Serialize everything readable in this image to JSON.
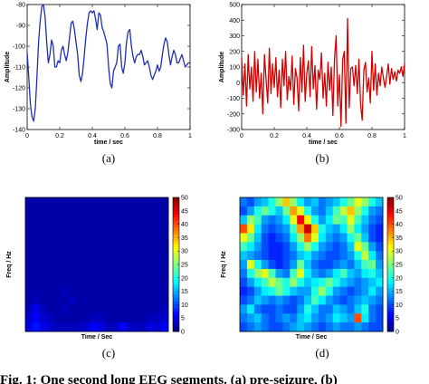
{
  "chart_data": [
    {
      "type": "line",
      "panel_label": "(a)",
      "xlabel": "time / sec",
      "ylabel": "Amplitude",
      "xlim": [
        0,
        1
      ],
      "ylim": [
        -140,
        -80
      ],
      "xticks": [
        "0",
        "0.2",
        "0.4",
        "0.6",
        "0.8",
        "1"
      ],
      "yticks": [
        "-80",
        "-90",
        "-100",
        "-110",
        "-120",
        "-130",
        "-140"
      ],
      "color": "#1f2fb0",
      "x": [
        0,
        0.01,
        0.02,
        0.03,
        0.04,
        0.05,
        0.06,
        0.07,
        0.08,
        0.09,
        0.1,
        0.11,
        0.12,
        0.13,
        0.14,
        0.15,
        0.16,
        0.17,
        0.18,
        0.19,
        0.2,
        0.21,
        0.22,
        0.23,
        0.24,
        0.25,
        0.26,
        0.27,
        0.28,
        0.29,
        0.3,
        0.31,
        0.32,
        0.33,
        0.34,
        0.35,
        0.36,
        0.37,
        0.38,
        0.39,
        0.4,
        0.41,
        0.42,
        0.43,
        0.44,
        0.45,
        0.46,
        0.47,
        0.48,
        0.49,
        0.5,
        0.51,
        0.52,
        0.53,
        0.54,
        0.55,
        0.56,
        0.57,
        0.58,
        0.59,
        0.6,
        0.61,
        0.62,
        0.63,
        0.64,
        0.65,
        0.66,
        0.67,
        0.68,
        0.69,
        0.7,
        0.71,
        0.72,
        0.73,
        0.74,
        0.75,
        0.76,
        0.77,
        0.78,
        0.79,
        0.8,
        0.81,
        0.82,
        0.83,
        0.84,
        0.85,
        0.86,
        0.87,
        0.88,
        0.89,
        0.9,
        0.91,
        0.92,
        0.93,
        0.94,
        0.95,
        0.96,
        0.97,
        0.98,
        0.99,
        1.0
      ],
      "y": [
        -103,
        -115,
        -128,
        -134,
        -136,
        -130,
        -115,
        -98,
        -88,
        -81,
        -80,
        -86,
        -98,
        -108,
        -104,
        -97,
        -100,
        -110,
        -110,
        -107,
        -108,
        -102,
        -100,
        -104,
        -107,
        -103,
        -96,
        -89,
        -88,
        -92,
        -98,
        -104,
        -114,
        -117,
        -113,
        -105,
        -96,
        -89,
        -84,
        -83,
        -84,
        -83,
        -87,
        -92,
        -84,
        -85,
        -91,
        -93,
        -96,
        -99,
        -110,
        -118,
        -120,
        -112,
        -110,
        -108,
        -100,
        -99,
        -110,
        -113,
        -108,
        -98,
        -93,
        -92,
        -100,
        -105,
        -108,
        -105,
        -104,
        -104,
        -102,
        -105,
        -109,
        -108,
        -107,
        -110,
        -114,
        -116,
        -114,
        -112,
        -109,
        -112,
        -110,
        -104,
        -99,
        -96,
        -98,
        -104,
        -109,
        -105,
        -102,
        -104,
        -108,
        -108,
        -106,
        -104,
        -107,
        -110,
        -109,
        -108,
        -108
      ]
    },
    {
      "type": "line",
      "panel_label": "(b)",
      "xlabel": "time / sec",
      "ylabel": "Amplitude",
      "xlim": [
        0,
        1
      ],
      "ylim": [
        -300,
        500
      ],
      "xticks": [
        "0",
        "0.2",
        "0.4",
        "0.6",
        "0.8",
        "1"
      ],
      "yticks": [
        "500",
        "400",
        "300",
        "200",
        "100",
        "0",
        "-100",
        "-200",
        "-300"
      ],
      "color": "#d40000",
      "x": [
        0,
        0.01,
        0.02,
        0.03,
        0.04,
        0.05,
        0.06,
        0.07,
        0.08,
        0.09,
        0.1,
        0.11,
        0.12,
        0.13,
        0.14,
        0.15,
        0.16,
        0.17,
        0.18,
        0.19,
        0.2,
        0.21,
        0.22,
        0.23,
        0.24,
        0.25,
        0.26,
        0.27,
        0.28,
        0.29,
        0.3,
        0.31,
        0.32,
        0.33,
        0.34,
        0.35,
        0.36,
        0.37,
        0.38,
        0.39,
        0.4,
        0.41,
        0.42,
        0.43,
        0.44,
        0.45,
        0.46,
        0.47,
        0.48,
        0.49,
        0.5,
        0.51,
        0.52,
        0.53,
        0.54,
        0.55,
        0.56,
        0.57,
        0.58,
        0.59,
        0.6,
        0.61,
        0.62,
        0.63,
        0.64,
        0.65,
        0.66,
        0.67,
        0.68,
        0.69,
        0.7,
        0.71,
        0.72,
        0.73,
        0.74,
        0.75,
        0.76,
        0.77,
        0.78,
        0.79,
        0.8,
        0.81,
        0.82,
        0.83,
        0.84,
        0.85,
        0.86,
        0.87,
        0.88,
        0.89,
        0.9,
        0.91,
        0.92,
        0.93,
        0.94,
        0.95,
        0.96,
        0.97,
        0.98,
        0.99,
        1.0
      ],
      "y": [
        160,
        -80,
        120,
        -150,
        180,
        -40,
        100,
        -120,
        200,
        -60,
        150,
        -100,
        60,
        -200,
        180,
        20,
        -130,
        220,
        -70,
        120,
        -30,
        160,
        -90,
        80,
        -160,
        150,
        -20,
        200,
        -110,
        40,
        -50,
        170,
        -140,
        90,
        30,
        -180,
        160,
        -60,
        240,
        -120,
        60,
        140,
        -90,
        230,
        -40,
        110,
        -170,
        80,
        20,
        190,
        -100,
        60,
        -150,
        130,
        -50,
        100,
        -210,
        150,
        300,
        -150,
        50,
        -280,
        150,
        200,
        -260,
        410,
        -160,
        90,
        100,
        -20,
        110,
        -70,
        150,
        -140,
        -240,
        80,
        130,
        -60,
        30,
        -130,
        200,
        -50,
        120,
        -80,
        60,
        -20,
        100,
        30,
        -30,
        40,
        120,
        -10,
        90,
        20,
        70,
        10,
        80,
        60,
        100,
        40,
        120
      ]
    },
    {
      "type": "heatmap",
      "panel_label": "(c)",
      "xlabel": "Time / Sec",
      "ylabel": "Freq / Hz",
      "colorbar_ticks": [
        "50",
        "45",
        "40",
        "35",
        "30",
        "25",
        "20",
        "15",
        "10",
        "5",
        "0"
      ],
      "clim": [
        0,
        50
      ],
      "grid": [
        [
          2,
          2,
          2,
          2,
          2,
          2,
          2,
          2,
          2,
          2,
          2,
          2,
          2,
          2,
          2,
          2,
          2,
          2,
          2,
          2
        ],
        [
          2,
          2,
          2,
          2,
          2,
          2,
          2,
          2,
          2,
          2,
          2,
          2,
          2,
          2,
          2,
          2,
          2,
          2,
          2,
          2
        ],
        [
          2,
          2,
          2,
          2,
          2,
          2,
          2,
          2,
          2,
          2,
          2,
          2,
          2,
          2,
          2,
          2,
          2,
          2,
          2,
          2
        ],
        [
          2,
          2,
          2,
          2,
          2,
          2,
          2,
          2,
          2,
          2,
          2,
          2,
          2,
          2,
          2,
          2,
          2,
          2,
          2,
          2
        ],
        [
          2,
          2,
          2,
          2,
          2,
          2,
          2,
          2,
          2,
          2,
          2,
          2,
          2,
          2,
          2,
          2,
          2,
          2,
          2,
          2
        ],
        [
          2,
          2,
          2,
          2,
          2,
          2,
          2,
          2,
          2,
          2,
          2,
          2,
          2,
          2,
          2,
          2,
          2,
          2,
          2,
          2
        ],
        [
          2,
          2,
          2,
          2,
          2,
          2,
          2,
          2,
          2,
          2,
          2,
          2,
          2,
          2,
          2,
          2,
          2,
          2,
          2,
          2
        ],
        [
          2,
          2,
          2,
          2,
          2,
          2,
          2,
          2,
          2,
          2,
          2,
          2,
          2,
          2,
          2,
          2,
          2,
          2,
          2,
          2
        ],
        [
          2,
          2,
          2,
          2,
          2,
          2,
          2,
          2,
          2,
          2,
          2,
          2,
          2,
          2,
          2,
          2,
          2,
          2,
          2,
          2
        ],
        [
          2,
          2,
          2,
          2,
          2,
          2,
          2,
          2,
          2,
          2,
          2,
          2,
          2,
          2,
          2,
          2,
          2,
          2,
          2,
          2
        ],
        [
          2,
          2,
          2,
          2,
          2,
          3,
          2,
          2,
          2,
          2,
          2,
          2,
          2,
          2,
          2,
          2,
          2,
          2,
          2,
          2
        ],
        [
          2,
          3,
          2,
          2,
          2,
          2,
          3,
          2,
          2,
          2,
          2,
          2,
          2,
          2,
          2,
          2,
          2,
          2,
          2,
          2
        ],
        [
          3,
          5,
          3,
          2,
          2,
          3,
          2,
          2,
          2,
          2,
          2,
          2,
          2,
          2,
          2,
          2,
          2,
          2,
          2,
          3
        ],
        [
          4,
          6,
          4,
          3,
          2,
          2,
          2,
          2,
          2,
          3,
          3,
          2,
          2,
          2,
          2,
          2,
          2,
          3,
          3,
          4
        ],
        [
          5,
          7,
          5,
          4,
          3,
          3,
          3,
          3,
          4,
          6,
          5,
          3,
          3,
          6,
          4,
          3,
          3,
          5,
          4,
          6
        ]
      ]
    },
    {
      "type": "heatmap",
      "panel_label": "(d)",
      "xlabel": "Time / Sec",
      "ylabel": "Freq / Hz",
      "colorbar_ticks": [
        "50",
        "45",
        "40",
        "35",
        "30",
        "25",
        "20",
        "15",
        "10",
        "5",
        "0"
      ],
      "clim": [
        0,
        50
      ],
      "grid": [
        [
          12,
          10,
          14,
          16,
          20,
          26,
          34,
          26,
          18,
          14,
          16,
          12,
          14,
          16,
          20,
          24,
          30,
          26,
          20,
          16
        ],
        [
          10,
          14,
          20,
          24,
          20,
          16,
          24,
          36,
          30,
          20,
          14,
          12,
          16,
          22,
          28,
          34,
          26,
          20,
          14,
          12
        ],
        [
          16,
          26,
          22,
          14,
          12,
          14,
          18,
          30,
          44,
          32,
          20,
          14,
          18,
          24,
          22,
          30,
          22,
          16,
          12,
          10
        ],
        [
          40,
          32,
          18,
          12,
          10,
          12,
          14,
          22,
          36,
          46,
          34,
          20,
          16,
          14,
          18,
          26,
          18,
          14,
          10,
          8
        ],
        [
          30,
          24,
          16,
          10,
          8,
          10,
          12,
          18,
          26,
          38,
          30,
          18,
          14,
          12,
          14,
          20,
          24,
          16,
          10,
          8
        ],
        [
          22,
          18,
          14,
          10,
          8,
          8,
          10,
          14,
          20,
          26,
          20,
          14,
          12,
          10,
          12,
          16,
          30,
          24,
          14,
          10
        ],
        [
          16,
          14,
          12,
          10,
          8,
          8,
          10,
          12,
          16,
          18,
          14,
          12,
          10,
          10,
          12,
          14,
          20,
          28,
          18,
          12
        ],
        [
          14,
          30,
          20,
          14,
          10,
          8,
          10,
          14,
          24,
          16,
          12,
          10,
          10,
          12,
          14,
          12,
          16,
          22,
          24,
          14
        ],
        [
          12,
          20,
          26,
          30,
          22,
          14,
          12,
          22,
          30,
          18,
          14,
          12,
          14,
          18,
          22,
          16,
          14,
          18,
          20,
          16
        ],
        [
          10,
          14,
          18,
          22,
          28,
          24,
          20,
          26,
          20,
          16,
          18,
          20,
          24,
          20,
          16,
          14,
          12,
          14,
          16,
          18
        ],
        [
          8,
          10,
          14,
          18,
          20,
          24,
          20,
          16,
          14,
          14,
          20,
          26,
          20,
          14,
          12,
          10,
          12,
          14,
          18,
          14
        ],
        [
          10,
          12,
          16,
          14,
          12,
          14,
          12,
          10,
          12,
          16,
          22,
          18,
          14,
          12,
          10,
          12,
          14,
          16,
          14,
          12
        ],
        [
          14,
          18,
          12,
          10,
          10,
          12,
          10,
          10,
          14,
          20,
          16,
          12,
          12,
          16,
          14,
          12,
          16,
          20,
          12,
          10
        ],
        [
          12,
          14,
          16,
          12,
          10,
          12,
          14,
          12,
          16,
          18,
          14,
          12,
          14,
          18,
          16,
          14,
          40,
          18,
          12,
          10
        ],
        [
          10,
          12,
          14,
          12,
          10,
          10,
          12,
          14,
          16,
          14,
          12,
          10,
          12,
          14,
          12,
          12,
          14,
          12,
          10,
          10
        ]
      ]
    }
  ],
  "subfigure_labels": [
    "(a)",
    "(b)",
    "(c)",
    "(d)"
  ],
  "caption": "Fig. 1: One second long EEG segments. (a) pre-seizure, (b)"
}
